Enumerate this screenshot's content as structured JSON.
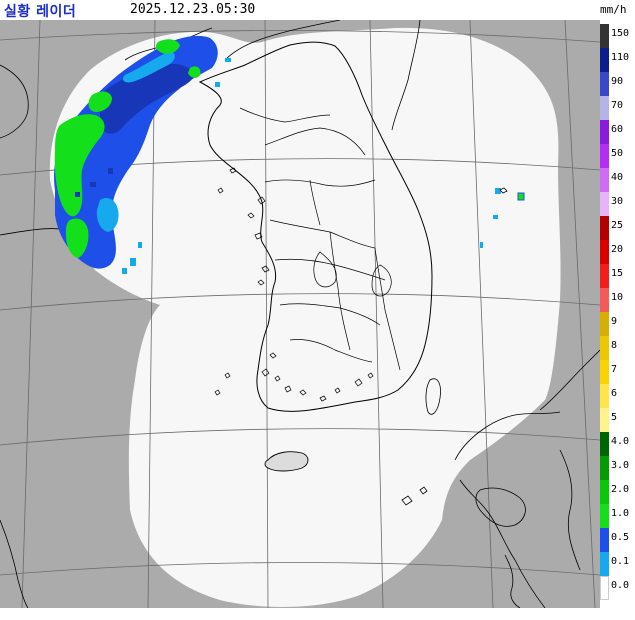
{
  "header": {
    "title": "실황 레이더",
    "timestamp": "2025.12.23.05:30",
    "unit": "mm/h"
  },
  "colors": {
    "title": "#1a2ccc",
    "map_background": "#ababab",
    "coverage": "#f7f7f7",
    "graticule": "#6a6a6a",
    "coastline": "#000000",
    "rain_light_blue": "#1e4fe8",
    "rain_dark_blue": "#1736b8",
    "rain_cyan": "#16a9ee",
    "rain_green": "#13e01a"
  },
  "legend": {
    "bins": [
      {
        "label": "150",
        "color": "#333333"
      },
      {
        "label": "110",
        "color": "#0d1e8c"
      },
      {
        "label": "90",
        "color": "#3b46c9"
      },
      {
        "label": "70",
        "color": "#b4b4e6"
      },
      {
        "label": "60",
        "color": "#8c1adc"
      },
      {
        "label": "50",
        "color": "#b42df2"
      },
      {
        "label": "40",
        "color": "#cf6cf5"
      },
      {
        "label": "30",
        "color": "#e8b4f8"
      },
      {
        "label": "25",
        "color": "#b30000"
      },
      {
        "label": "20",
        "color": "#dc0000"
      },
      {
        "label": "15",
        "color": "#f21e1e"
      },
      {
        "label": "10",
        "color": "#f55a5a"
      },
      {
        "label": "9",
        "color": "#d6b000"
      },
      {
        "label": "8",
        "color": "#ebc800"
      },
      {
        "label": "7",
        "color": "#fad400"
      },
      {
        "label": "6",
        "color": "#fde64a"
      },
      {
        "label": "5",
        "color": "#fff38c"
      },
      {
        "label": "4.0",
        "color": "#006600"
      },
      {
        "label": "3.0",
        "color": "#049b04"
      },
      {
        "label": "2.0",
        "color": "#09c709"
      },
      {
        "label": "1.0",
        "color": "#13e01a"
      },
      {
        "label": "0.5",
        "color": "#1e4fe8"
      },
      {
        "label": "0.1",
        "color": "#16a9ee"
      },
      {
        "label": "0.0",
        "color": "#ffffff"
      }
    ]
  }
}
